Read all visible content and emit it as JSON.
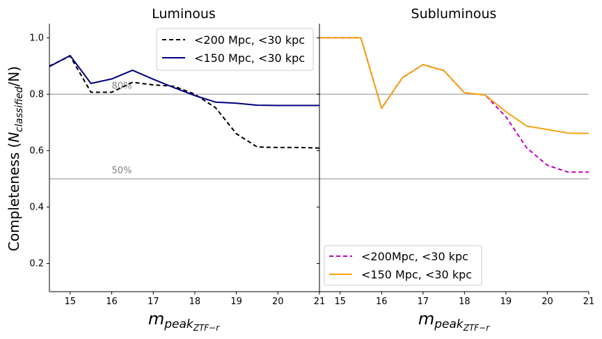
{
  "chart_data": [
    {
      "type": "line",
      "title": "Luminous",
      "xlabel": "m",
      "xlabel_sub": "peak",
      "xlabel_subsub": "ZTF−r",
      "ylabel_main": "Completeness (",
      "ylabel_N": "N",
      "ylabel_sub": "classified",
      "ylabel_tail": "/N)",
      "xlim": [
        14.5,
        21
      ],
      "ylim": [
        0.1,
        1.05
      ],
      "xticks": [
        "15",
        "16",
        "17",
        "18",
        "19",
        "20",
        "21"
      ],
      "yticks": [
        "0.2",
        "0.4",
        "0.6",
        "0.8",
        "1.0"
      ],
      "reference_lines": [
        {
          "value": 0.8,
          "label": "80%",
          "color": "#b0b0b0"
        },
        {
          "value": 0.5,
          "label": "50%",
          "color": "#b0b0b0"
        }
      ],
      "legend_position": "upper right",
      "series": [
        {
          "name": "<200 Mpc, <30 kpc",
          "color": "#000000",
          "style": "dashed",
          "x": [
            14.5,
            15,
            15.5,
            16,
            16.5,
            17,
            17.5,
            18,
            18.5,
            19,
            19.5,
            20,
            20.5,
            21
          ],
          "y": [
            0.9,
            0.935,
            0.807,
            0.807,
            0.842,
            0.833,
            0.828,
            0.8,
            0.752,
            0.66,
            0.613,
            0.611,
            0.611,
            0.609
          ]
        },
        {
          "name": "<150 Mpc, <30 kpc",
          "color": "#000080",
          "style": "solid",
          "x": [
            14.5,
            15,
            15.5,
            16,
            16.5,
            17,
            17.5,
            18,
            18.5,
            19,
            19.5,
            20,
            20.5,
            21
          ],
          "y": [
            0.898,
            0.937,
            0.838,
            0.854,
            0.885,
            0.853,
            0.823,
            0.795,
            0.772,
            0.768,
            0.761,
            0.76,
            0.76,
            0.76
          ]
        }
      ]
    },
    {
      "type": "line",
      "title": "Subluminous",
      "xlabel": "m",
      "xlabel_sub": "peak",
      "xlabel_subsub": "ZTF−r",
      "xlim": [
        14.5,
        21
      ],
      "ylim": [
        0.1,
        1.05
      ],
      "xticks": [
        "15",
        "16",
        "17",
        "18",
        "19",
        "20",
        "21"
      ],
      "reference_lines": [
        {
          "value": 0.8,
          "color": "#b0b0b0"
        },
        {
          "value": 0.5,
          "color": "#b0b0b0"
        }
      ],
      "legend_position": "lower left",
      "series": [
        {
          "name": "<200Mpc, <30 kpc",
          "color": "#bf00bf",
          "style": "dashed",
          "x": [
            14.5,
            15,
            15.5,
            16,
            16.5,
            17,
            17.5,
            18,
            18.5,
            19,
            19.5,
            20,
            20.5,
            21
          ],
          "y": [
            1.0,
            1.0,
            1.0,
            0.75,
            0.858,
            0.905,
            0.884,
            0.805,
            0.797,
            0.72,
            0.61,
            0.548,
            0.524,
            0.524
          ]
        },
        {
          "name": "<150 Mpc, <30 kpc",
          "color": "#f5a20e",
          "style": "solid",
          "x": [
            14.5,
            15,
            15.5,
            16,
            16.5,
            17,
            17.5,
            18,
            18.5,
            19,
            19.5,
            20,
            20.5,
            21
          ],
          "y": [
            1.0,
            1.0,
            1.0,
            0.75,
            0.858,
            0.905,
            0.884,
            0.805,
            0.797,
            0.738,
            0.687,
            0.675,
            0.662,
            0.661
          ]
        }
      ]
    }
  ]
}
